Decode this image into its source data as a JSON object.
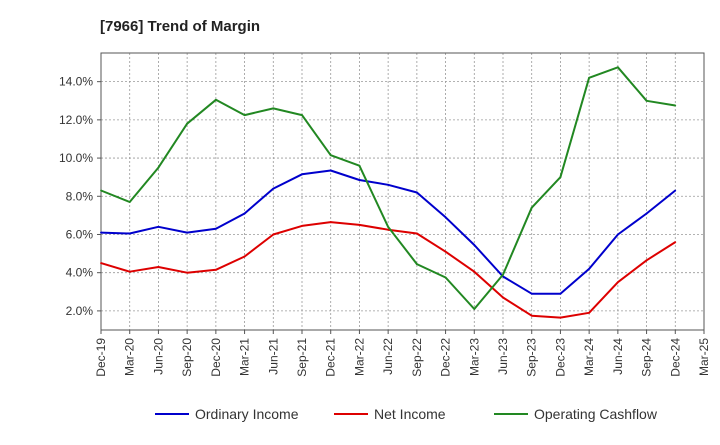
{
  "chart_data": {
    "type": "line",
    "title": "[7966]  Trend of Margin",
    "xlabel": "",
    "ylabel": "",
    "categories": [
      "Dec-19",
      "Mar-20",
      "Jun-20",
      "Sep-20",
      "Dec-20",
      "Mar-21",
      "Jun-21",
      "Sep-21",
      "Dec-21",
      "Mar-22",
      "Jun-22",
      "Sep-22",
      "Dec-22",
      "Mar-23",
      "Jun-23",
      "Sep-23",
      "Dec-23",
      "Mar-24",
      "Jun-24",
      "Sep-24",
      "Dec-24",
      "Mar-25"
    ],
    "ylim": [
      1.0,
      15.5
    ],
    "yticks": [
      2.0,
      4.0,
      6.0,
      8.0,
      10.0,
      12.0,
      14.0
    ],
    "ytick_labels": [
      "2.0%",
      "4.0%",
      "6.0%",
      "8.0%",
      "10.0%",
      "12.0%",
      "14.0%"
    ],
    "grid": true,
    "legend_position": "bottom",
    "series": [
      {
        "name": "Ordinary Income",
        "color": "#0000cc",
        "values": [
          6.1,
          6.05,
          6.4,
          6.1,
          6.3,
          7.1,
          8.4,
          9.15,
          9.35,
          8.85,
          8.6,
          8.2,
          6.9,
          5.45,
          3.8,
          2.9,
          2.9,
          4.2,
          6.0,
          7.1,
          8.3,
          null
        ]
      },
      {
        "name": "Net Income",
        "color": "#dd0000",
        "values": [
          4.5,
          4.05,
          4.3,
          4.0,
          4.15,
          4.85,
          6.0,
          6.45,
          6.65,
          6.5,
          6.25,
          6.05,
          5.1,
          4.05,
          2.7,
          1.75,
          1.65,
          1.9,
          3.5,
          4.65,
          5.6,
          null
        ]
      },
      {
        "name": "Operating Cashflow",
        "color": "#228822",
        "values": [
          8.3,
          7.7,
          9.5,
          11.8,
          13.05,
          12.25,
          12.6,
          12.25,
          10.15,
          9.6,
          6.4,
          4.45,
          3.75,
          2.1,
          3.9,
          7.4,
          9.0,
          14.2,
          14.75,
          13.0,
          12.75,
          null
        ]
      }
    ]
  }
}
